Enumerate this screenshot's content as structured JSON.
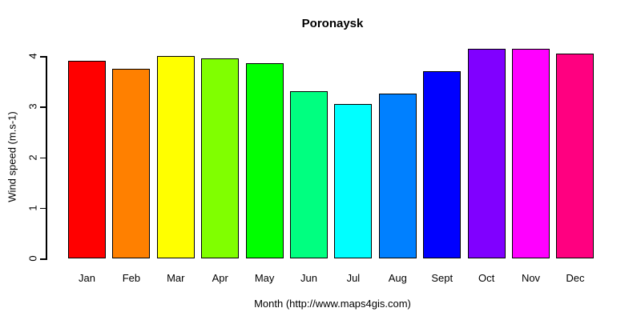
{
  "title": "Poronaysk",
  "axes": {
    "y_label": "Wind speed (m.s-1)",
    "x_label": "Month (http://www.maps4gis.com)"
  },
  "chart_data": {
    "type": "bar",
    "title": "Poronaysk",
    "xlabel": "Month (http://www.maps4gis.com)",
    "ylabel": "Wind speed (m.s-1)",
    "categories": [
      "Jan",
      "Feb",
      "Mar",
      "Apr",
      "May",
      "Jun",
      "Jul",
      "Aug",
      "Sept",
      "Oct",
      "Nov",
      "Dec"
    ],
    "values": [
      3.9,
      3.75,
      4.0,
      3.95,
      3.85,
      3.3,
      3.05,
      3.25,
      3.7,
      4.15,
      4.15,
      4.05
    ],
    "bar_colors": [
      "#FF0000",
      "#FF8000",
      "#FFFF00",
      "#80FF00",
      "#00FF00",
      "#00FF80",
      "#00FFFF",
      "#0080FF",
      "#0000FF",
      "#8000FF",
      "#FF00FF",
      "#FF0080"
    ],
    "bar_border_color": "#000000",
    "text_color": "#000000",
    "background_color": "#FFFFFF",
    "y_ticks": [
      0,
      1,
      2,
      3,
      4
    ],
    "ylim": [
      0,
      4.2
    ],
    "grid": false,
    "legend": null
  }
}
